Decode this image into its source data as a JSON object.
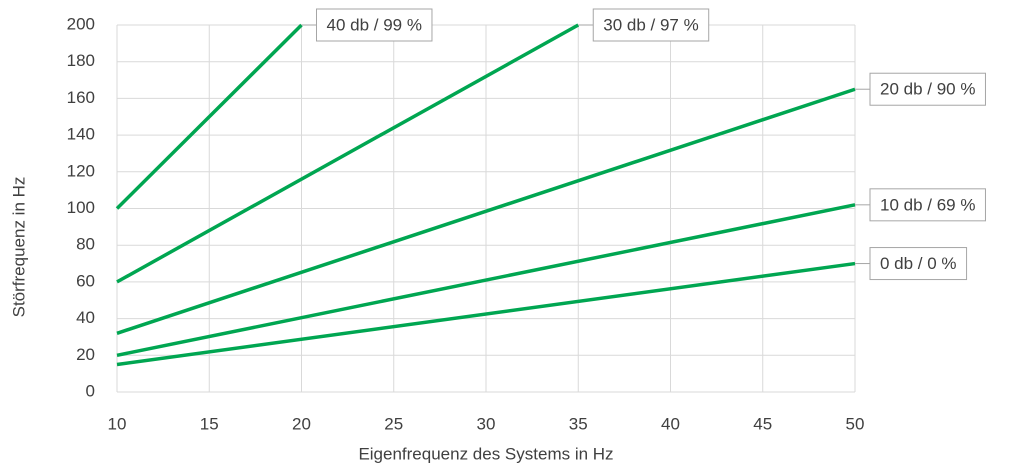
{
  "chart_data": {
    "type": "line",
    "xlabel": "Eigenfrequenz des Systems in Hz",
    "ylabel": "Störfrequenz in Hz",
    "xlim": [
      10,
      50
    ],
    "xticks": [
      10,
      15,
      20,
      25,
      30,
      35,
      40,
      45,
      50
    ],
    "ylim": [
      0,
      200
    ],
    "yticks": [
      0,
      20,
      40,
      60,
      80,
      100,
      120,
      140,
      160,
      180,
      200
    ],
    "grid": true,
    "series": [
      {
        "name": "0 db / 0 %",
        "color": "#00a651",
        "x": [
          10,
          50
        ],
        "values": [
          15,
          70
        ]
      },
      {
        "name": "10 db / 69 %",
        "color": "#00a651",
        "x": [
          10,
          50
        ],
        "values": [
          20,
          102
        ]
      },
      {
        "name": "20 db / 90 %",
        "color": "#00a651",
        "x": [
          10,
          50
        ],
        "values": [
          32,
          165
        ]
      },
      {
        "name": "30 db / 97 %",
        "color": "#00a651",
        "x": [
          10,
          35
        ],
        "values": [
          60,
          200
        ]
      },
      {
        "name": "40 db / 99 %",
        "color": "#00a651",
        "x": [
          10,
          20
        ],
        "values": [
          100,
          200
        ]
      }
    ]
  }
}
